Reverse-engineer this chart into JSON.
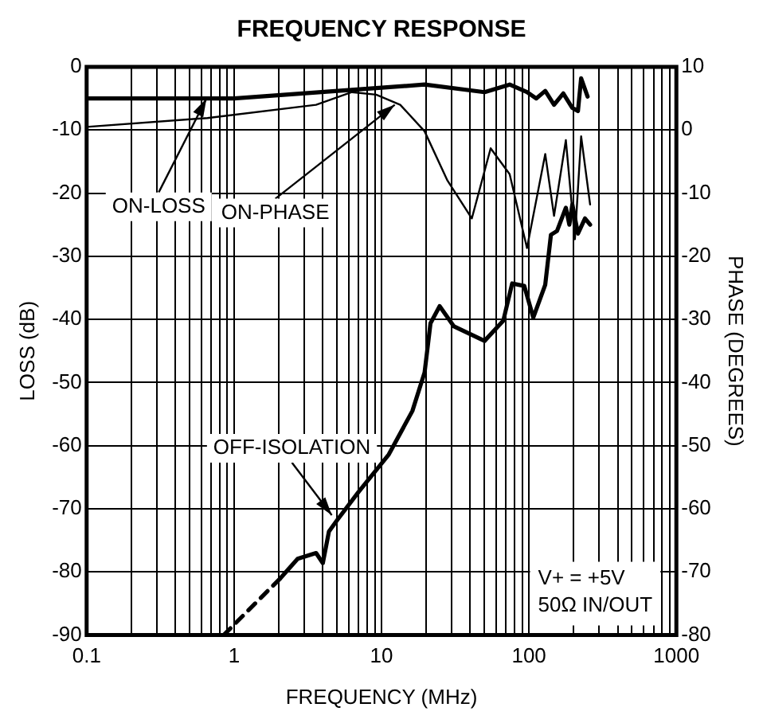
{
  "chart_data": {
    "type": "line",
    "title": "FREQUENCY RESPONSE",
    "xlabel": "FREQUENCY (MHz)",
    "ylabel": "LOSS (dB)",
    "y2label": "PHASE (DEGREES)",
    "log": "x",
    "grid": true,
    "legend": false,
    "marker": "none",
    "xlim": [
      0.1,
      1000
    ],
    "xticks": [
      0.1,
      {
        "value": 0.2,
        "label": null
      },
      {
        "value": 0.3,
        "label": null
      },
      {
        "value": 0.4,
        "label": null
      },
      {
        "value": 0.5,
        "label": null
      },
      {
        "value": 0.6,
        "label": null
      },
      {
        "value": 0.7,
        "label": null
      },
      {
        "value": 0.8,
        "label": null
      },
      {
        "value": 0.9,
        "label": null
      },
      1,
      {
        "value": 2,
        "label": null
      },
      {
        "value": 3,
        "label": null
      },
      {
        "value": 4,
        "label": null
      },
      {
        "value": 5,
        "label": null
      },
      {
        "value": 6,
        "label": null
      },
      {
        "value": 7,
        "label": null
      },
      {
        "value": 8,
        "label": null
      },
      {
        "value": 9,
        "label": null
      },
      10,
      {
        "value": 20,
        "label": null
      },
      {
        "value": 30,
        "label": null
      },
      {
        "value": 40,
        "label": null
      },
      {
        "value": 50,
        "label": null
      },
      {
        "value": 60,
        "label": null
      },
      {
        "value": 70,
        "label": null
      },
      {
        "value": 80,
        "label": null
      },
      {
        "value": 90,
        "label": null
      },
      100,
      {
        "value": 200,
        "label": null
      },
      {
        "value": 300,
        "label": null
      },
      {
        "value": 400,
        "label": null
      },
      {
        "value": 500,
        "label": null
      },
      {
        "value": 600,
        "label": null
      },
      {
        "value": 700,
        "label": null
      },
      {
        "value": 800,
        "label": null
      },
      {
        "value": 900,
        "label": null
      },
      1000
    ],
    "ylim": [
      -90,
      0
    ],
    "yticks": [
      0,
      -10,
      -20,
      -30,
      -40,
      -50,
      -60,
      -70,
      -80,
      -90
    ],
    "y2lim": [
      -80,
      10
    ],
    "y2ticks": [
      10,
      0,
      -10,
      -20,
      -30,
      -40,
      -50,
      -60,
      -70,
      -80
    ],
    "series": [
      {
        "color": "#000000",
        "line_style": "solid",
        "x": [
          0.1,
          1,
          10,
          19.6,
          50,
          74,
          97,
          112,
          129,
          148,
          171,
          197,
          215,
          226,
          250
        ],
        "values": [
          -5,
          -5,
          -3.3,
          -2.8,
          -4,
          -2.8,
          -4,
          -5,
          -3.8,
          -6,
          -4.2,
          -6.5,
          -7,
          -1.8,
          -4.7
        ]
      },
      {
        "color": "#000000",
        "line_style": "solid",
        "axis": "y2",
        "x": [
          0.1,
          0.66,
          3.6,
          6.3,
          9.2,
          13.4,
          19.6,
          28,
          41,
          55,
          74,
          97,
          129,
          148,
          178,
          205,
          226,
          260
        ],
        "values": [
          0.5,
          1.9,
          4,
          6,
          5.6,
          4,
          -0.2,
          -8,
          -14,
          -2.9,
          -7,
          -18.7,
          -3.8,
          -13.6,
          -1.6,
          -17.3,
          -1,
          -11.8
        ]
      },
      {
        "color": "#000000",
        "line_style": "dashed",
        "x": [
          0.85,
          2.06
        ],
        "values": [
          -90,
          -81
        ]
      },
      {
        "color": "#000000",
        "line_style": "solid",
        "x": [
          2.06,
          2.7,
          3.6,
          4.0,
          4.4,
          5.0,
          7.0,
          11.2,
          16.2,
          19.6,
          21.5,
          24.8,
          31,
          50,
          67,
          77,
          93,
          107,
          129,
          141,
          155,
          178,
          188,
          197,
          215,
          240,
          260
        ],
        "values": [
          -81,
          -77.9,
          -77,
          -78.6,
          -73.6,
          -71.8,
          -67.3,
          -61.4,
          -54.5,
          -48.4,
          -40.6,
          -37.9,
          -41.1,
          -43.4,
          -40.2,
          -34.3,
          -34.7,
          -39.7,
          -34.5,
          -26.6,
          -26,
          -22.3,
          -25,
          -21.8,
          -26.4,
          -24,
          -25
        ]
      }
    ],
    "annotations": [
      {
        "text": "ON-LOSS",
        "x": 0.65,
        "y": -5
      },
      {
        "text": "ON-PHASE",
        "x": 12.3,
        "y": -6
      },
      {
        "text": "OFF-ISOLATION",
        "x": 4.6,
        "y": -71
      },
      "V+ = +5V\n50Ω IN/OUT"
    ]
  }
}
